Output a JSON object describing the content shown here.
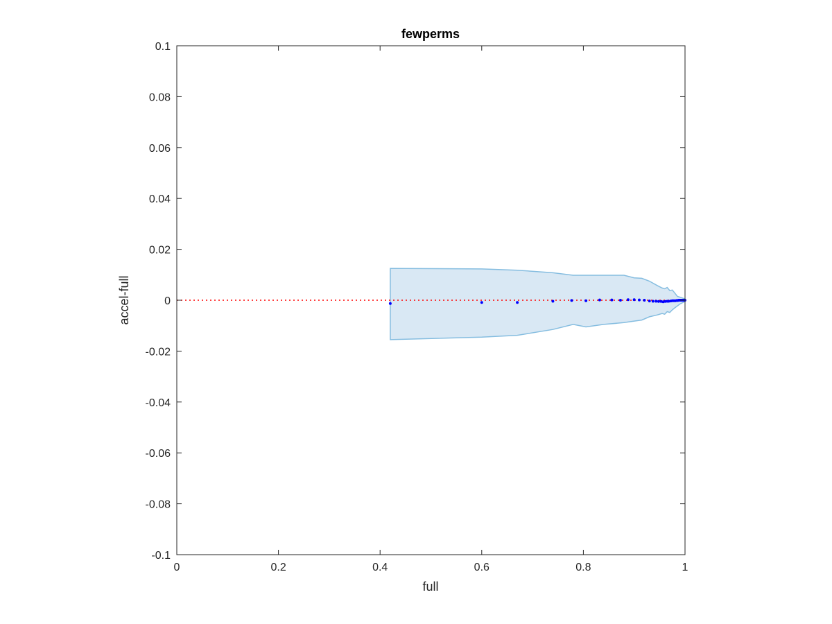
{
  "chart_data": {
    "type": "scatter",
    "title": "fewperms",
    "xlabel": "full",
    "ylabel": "accel-full",
    "xlim": [
      0,
      1
    ],
    "ylim": [
      -0.1,
      0.1
    ],
    "xticks": [
      0,
      0.2,
      0.4,
      0.6,
      0.8,
      1
    ],
    "xtick_labels": [
      "0",
      "0.2",
      "0.4",
      "0.6",
      "0.8",
      "1"
    ],
    "yticks": [
      0.1,
      0.08,
      0.06,
      0.04,
      0.02,
      0,
      -0.02,
      -0.04,
      -0.06,
      -0.08,
      -0.1
    ],
    "ytick_labels": [
      "0.1",
      "0.08",
      "0.06",
      "0.04",
      "0.02",
      "0",
      "-0.02",
      "-0.04",
      "-0.06",
      "-0.08",
      "-0.1"
    ],
    "grid": false,
    "reference_line": {
      "y": 0,
      "color": "#ff0000",
      "style": "dotted"
    },
    "band": {
      "fill_color": "#d9e8f4",
      "edge_color": "#85bde0",
      "upper": [
        [
          0.42,
          0.0125
        ],
        [
          0.6,
          0.0123
        ],
        [
          0.67,
          0.0118
        ],
        [
          0.74,
          0.0108
        ],
        [
          0.78,
          0.0098
        ],
        [
          0.84,
          0.0098
        ],
        [
          0.88,
          0.0098
        ],
        [
          0.9,
          0.0088
        ],
        [
          0.915,
          0.0086
        ],
        [
          0.93,
          0.0075
        ],
        [
          0.945,
          0.0058
        ],
        [
          0.955,
          0.0048
        ],
        [
          0.96,
          0.0045
        ],
        [
          0.965,
          0.005
        ],
        [
          0.97,
          0.0038
        ],
        [
          0.975,
          0.004
        ],
        [
          0.98,
          0.0028
        ],
        [
          0.985,
          0.0015
        ],
        [
          0.99,
          0.0012
        ],
        [
          1.0,
          0.0005
        ]
      ],
      "lower": [
        [
          0.42,
          -0.0155
        ],
        [
          0.6,
          -0.0145
        ],
        [
          0.67,
          -0.0138
        ],
        [
          0.74,
          -0.0115
        ],
        [
          0.78,
          -0.0095
        ],
        [
          0.805,
          -0.0105
        ],
        [
          0.84,
          -0.0095
        ],
        [
          0.88,
          -0.0088
        ],
        [
          0.9,
          -0.0082
        ],
        [
          0.915,
          -0.0078
        ],
        [
          0.93,
          -0.0065
        ],
        [
          0.945,
          -0.0058
        ],
        [
          0.955,
          -0.0052
        ],
        [
          0.96,
          -0.0055
        ],
        [
          0.965,
          -0.0045
        ],
        [
          0.97,
          -0.0048
        ],
        [
          0.975,
          -0.0038
        ],
        [
          0.98,
          -0.003
        ],
        [
          0.99,
          -0.0015
        ],
        [
          1.0,
          -0.0005
        ]
      ]
    },
    "points_color": "#0000ff",
    "points": [
      [
        0.42,
        -0.0013
      ],
      [
        0.6,
        -0.0009
      ],
      [
        0.67,
        -0.0009
      ],
      [
        0.74,
        -0.0004
      ],
      [
        0.777,
        -0.0001
      ],
      [
        0.805,
        -0.0002
      ],
      [
        0.832,
        0.0001
      ],
      [
        0.856,
        0.0001
      ],
      [
        0.873,
        0.0
      ],
      [
        0.888,
        0.0002
      ],
      [
        0.9,
        0.0002
      ],
      [
        0.91,
        0.0001
      ],
      [
        0.92,
        0.0
      ],
      [
        0.93,
        -0.0003
      ],
      [
        0.937,
        -0.0004
      ],
      [
        0.943,
        -0.0004
      ],
      [
        0.948,
        -0.0005
      ],
      [
        0.953,
        -0.0005
      ],
      [
        0.957,
        -0.0006
      ],
      [
        0.961,
        -0.0005
      ],
      [
        0.965,
        -0.0004
      ],
      [
        0.968,
        -0.0004
      ],
      [
        0.972,
        -0.0003
      ],
      [
        0.975,
        -0.0002
      ],
      [
        0.978,
        -0.0002
      ],
      [
        0.981,
        -0.0002
      ],
      [
        0.984,
        -0.0001
      ],
      [
        0.986,
        -0.0001
      ],
      [
        0.988,
        0.0
      ],
      [
        0.99,
        0.0
      ],
      [
        0.992,
        0.0
      ],
      [
        0.994,
        0.0
      ],
      [
        0.996,
        0.0
      ],
      [
        0.998,
        0.0
      ],
      [
        1.0,
        0.0
      ]
    ]
  }
}
